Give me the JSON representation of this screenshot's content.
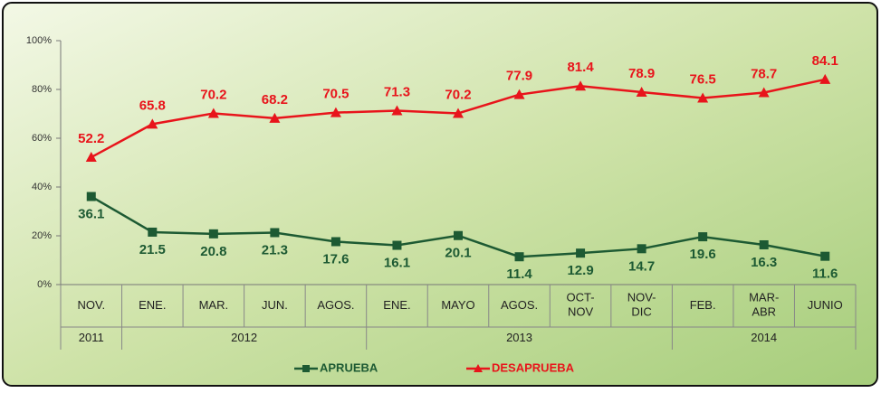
{
  "chart_data": {
    "type": "line",
    "categories": [
      "NOV.",
      "ENE.",
      "MAR.",
      "JUN.",
      "AGOS.",
      "ENE.",
      "MAYO",
      "AGOS.",
      "OCT-NOV",
      "NOV-DIC",
      "FEB.",
      "MAR-ABR",
      "JUNIO"
    ],
    "year_groups": [
      {
        "label": "2011",
        "span": 1
      },
      {
        "label": "2012",
        "span": 4
      },
      {
        "label": "2013",
        "span": 5
      },
      {
        "label": "2014",
        "span": 3
      }
    ],
    "series": [
      {
        "name": "APRUEBA",
        "color": "#1d5a33",
        "marker": "square",
        "values": [
          36.1,
          21.5,
          20.8,
          21.3,
          17.6,
          16.1,
          20.1,
          11.4,
          12.9,
          14.7,
          19.6,
          16.3,
          11.6
        ]
      },
      {
        "name": "DESAPRUEBA",
        "color": "#e8141b",
        "marker": "triangle",
        "values": [
          52.2,
          65.8,
          70.2,
          68.2,
          70.5,
          71.3,
          70.2,
          77.9,
          81.4,
          78.9,
          76.5,
          78.7,
          84.1
        ]
      }
    ],
    "ylim": [
      0,
      100
    ],
    "yticks": [
      {
        "value": 0,
        "label": "0%"
      },
      {
        "value": 20,
        "label": "20%"
      },
      {
        "value": 40,
        "label": "40%"
      },
      {
        "value": 60,
        "label": "60%"
      },
      {
        "value": 80,
        "label": "80%"
      },
      {
        "value": 100,
        "label": "100%"
      }
    ],
    "legend": "bottom"
  }
}
